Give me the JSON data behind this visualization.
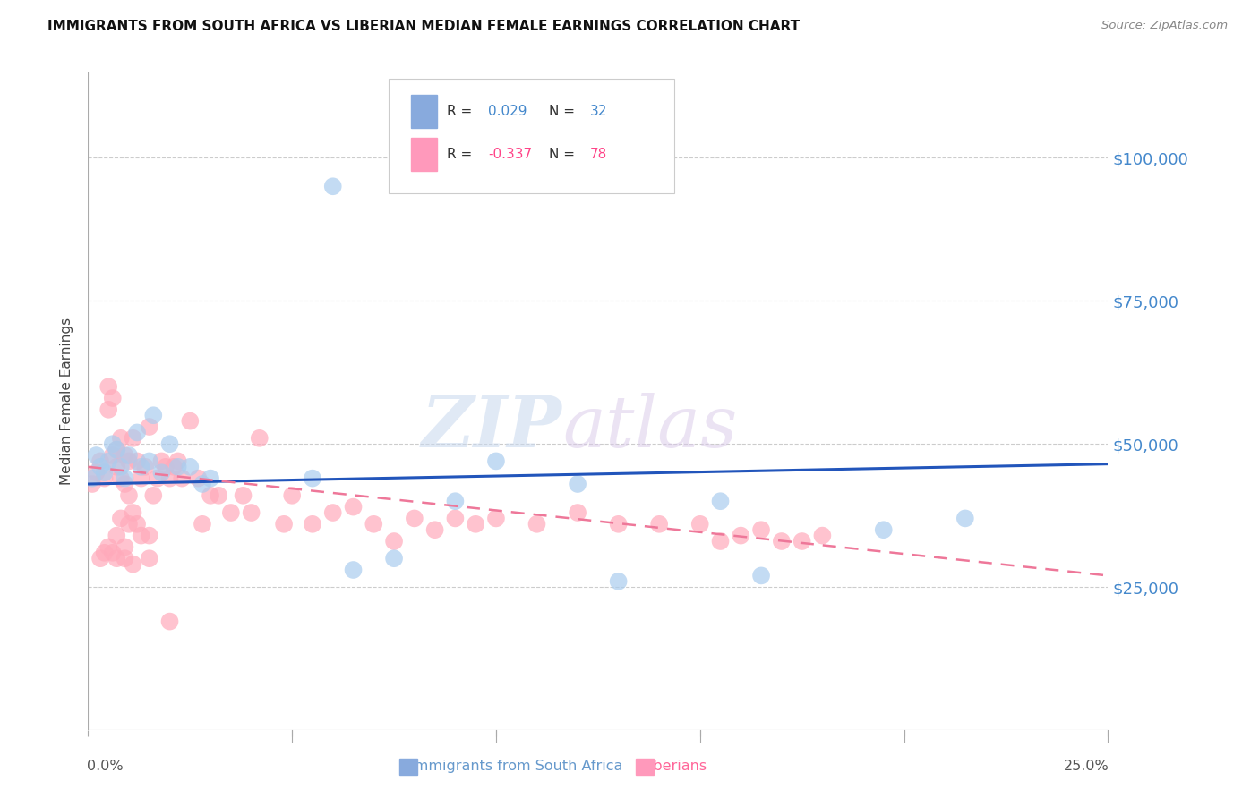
{
  "title": "IMMIGRANTS FROM SOUTH AFRICA VS LIBERIAN MEDIAN FEMALE EARNINGS CORRELATION CHART",
  "source": "Source: ZipAtlas.com",
  "ylabel": "Median Female Earnings",
  "ytick_labels": [
    "$100,000",
    "$75,000",
    "$50,000",
    "$25,000"
  ],
  "ytick_values": [
    100000,
    75000,
    50000,
    25000
  ],
  "ylim": [
    0,
    115000
  ],
  "xlim": [
    0.0,
    0.25
  ],
  "line1_color": "#2255bb",
  "line2_color": "#ee7799",
  "scatter_color1": "#aaccee",
  "scatter_color2": "#ffaabb",
  "legend_color1": "#88aadd",
  "legend_color2": "#ff99bb",
  "watermark_zip_color": "#c8d8ee",
  "watermark_atlas_color": "#d8c8e8",
  "background_color": "#ffffff",
  "grid_color": "#cccccc",
  "scatter1_x": [
    0.001,
    0.002,
    0.003,
    0.004,
    0.005,
    0.006,
    0.007,
    0.008,
    0.009,
    0.01,
    0.012,
    0.013,
    0.015,
    0.016,
    0.018,
    0.02,
    0.022,
    0.025,
    0.028,
    0.03,
    0.055,
    0.065,
    0.075,
    0.09,
    0.1,
    0.12,
    0.13,
    0.155,
    0.165,
    0.195,
    0.215,
    0.06
  ],
  "scatter1_y": [
    44000,
    48000,
    46000,
    45000,
    47000,
    50000,
    49000,
    46000,
    44000,
    48000,
    52000,
    46000,
    47000,
    55000,
    45000,
    50000,
    46000,
    46000,
    43000,
    44000,
    44000,
    28000,
    30000,
    40000,
    47000,
    43000,
    26000,
    40000,
    27000,
    35000,
    37000,
    95000
  ],
  "scatter2_x": [
    0.001,
    0.002,
    0.003,
    0.004,
    0.005,
    0.005,
    0.006,
    0.006,
    0.007,
    0.007,
    0.008,
    0.008,
    0.009,
    0.009,
    0.01,
    0.01,
    0.011,
    0.011,
    0.012,
    0.013,
    0.014,
    0.015,
    0.016,
    0.017,
    0.018,
    0.019,
    0.02,
    0.021,
    0.022,
    0.023,
    0.025,
    0.027,
    0.028,
    0.03,
    0.032,
    0.035,
    0.038,
    0.04,
    0.042,
    0.048,
    0.05,
    0.055,
    0.06,
    0.065,
    0.07,
    0.075,
    0.08,
    0.085,
    0.09,
    0.095,
    0.1,
    0.11,
    0.12,
    0.13,
    0.14,
    0.15,
    0.155,
    0.16,
    0.165,
    0.17,
    0.175,
    0.18,
    0.012,
    0.008,
    0.015,
    0.01,
    0.013,
    0.009,
    0.007,
    0.006,
    0.005,
    0.004,
    0.003,
    0.007,
    0.009,
    0.011,
    0.015,
    0.02
  ],
  "scatter2_y": [
    43000,
    45000,
    47000,
    44000,
    56000,
    60000,
    58000,
    48000,
    46000,
    49000,
    51000,
    44000,
    48000,
    43000,
    47000,
    41000,
    51000,
    38000,
    47000,
    44000,
    46000,
    53000,
    41000,
    44000,
    47000,
    46000,
    44000,
    46000,
    47000,
    44000,
    54000,
    44000,
    36000,
    41000,
    41000,
    38000,
    41000,
    38000,
    51000,
    36000,
    41000,
    36000,
    38000,
    39000,
    36000,
    33000,
    37000,
    35000,
    37000,
    36000,
    37000,
    36000,
    38000,
    36000,
    36000,
    36000,
    33000,
    34000,
    35000,
    33000,
    33000,
    34000,
    36000,
    37000,
    34000,
    36000,
    34000,
    32000,
    30000,
    31000,
    32000,
    31000,
    30000,
    34000,
    30000,
    29000,
    30000,
    19000
  ],
  "line1_x": [
    0.0,
    0.25
  ],
  "line1_y": [
    43000,
    46500
  ],
  "line2_x": [
    0.0,
    0.25
  ],
  "line2_y": [
    46000,
    27000
  ]
}
